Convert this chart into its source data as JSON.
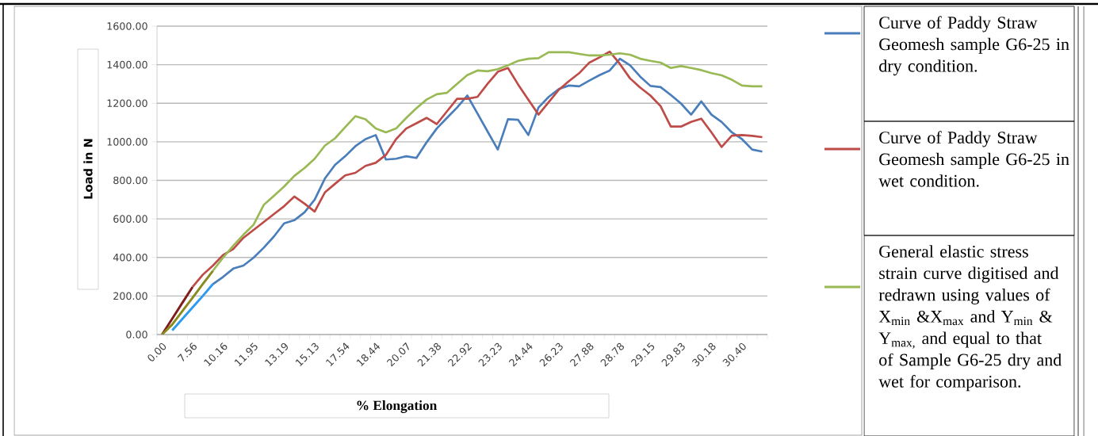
{
  "chart_data": {
    "type": "line",
    "xlabel": "% Elongation",
    "ylabel": "Load in N",
    "categories": [
      "0.00",
      null,
      null,
      "7.56",
      null,
      null,
      "10.16",
      null,
      null,
      "11.95",
      null,
      null,
      "13.19",
      null,
      null,
      "15.13",
      null,
      null,
      "17.54",
      null,
      null,
      "18.44",
      null,
      null,
      "20.07",
      null,
      null,
      "21.38",
      null,
      null,
      "22.92",
      null,
      null,
      "23.23",
      null,
      null,
      "24.44",
      null,
      null,
      "26.23",
      null,
      null,
      "27.88",
      null,
      null,
      "28.78",
      null,
      null,
      "29.15",
      null,
      null,
      "29.83",
      null,
      null,
      "30.18",
      null,
      null,
      "30.40",
      null,
      null
    ],
    "series": [
      {
        "name": "Curve of Paddy Straw Geomesh sample G6-25 in dry condition.",
        "color": "#4a7ebb",
        "values": [
          null,
          null,
          null,
          null,
          null,
          262,
          299,
          342,
          358,
          399,
          451,
          509,
          577,
          593,
          634,
          700,
          809,
          880,
          925,
          977,
          1014,
          1035,
          908,
          912,
          925,
          916,
          997,
          1069,
          1124,
          1178,
          1240,
          1147,
          1053,
          960,
          1117,
          1114,
          1035,
          1178,
          1233,
          1274,
          1292,
          1288,
          1318,
          1346,
          1370,
          1431,
          1397,
          1338,
          1290,
          1284,
          1243,
          1199,
          1141,
          1210,
          1141,
          1103,
          1049,
          1014,
          960,
          949
        ]
      },
      {
        "name": "Curve of Paddy Straw Geomesh sample G6-25 in wet condition.",
        "color": "#be4b48",
        "values": [
          null,
          null,
          null,
          247,
          310,
          358,
          413,
          444,
          502,
          543,
          584,
          625,
          666,
          716,
          679,
          638,
          737,
          782,
          826,
          839,
          875,
          891,
          932,
          1014,
          1069,
          1096,
          1124,
          1092,
          1158,
          1223,
          1223,
          1233,
          1301,
          1363,
          1383,
          1297,
          1219,
          1141,
          1206,
          1270,
          1315,
          1356,
          1411,
          1438,
          1468,
          1404,
          1329,
          1281,
          1240,
          1185,
          1079,
          1079,
          1103,
          1120,
          1049,
          973,
          1032,
          1035,
          1031,
          1024
        ]
      },
      {
        "name": "General elastic stress strain curve digitised and redrawn using values of X$_{min}$ &X$_{max}$ and Y$_{min}$ & Y$_{max,}$ and equal to that of Sample G6-25 dry and wet for comparison.",
        "color": "#98b954",
        "values": [
          null,
          null,
          null,
          null,
          null,
          331,
          399,
          461,
          518,
          570,
          673,
          720,
          768,
          823,
          864,
          912,
          980,
          1018,
          1076,
          1133,
          1117,
          1069,
          1049,
          1069,
          1124,
          1174,
          1219,
          1247,
          1254,
          1301,
          1346,
          1370,
          1366,
          1377,
          1397,
          1420,
          1431,
          1434,
          1465,
          1465,
          1465,
          1456,
          1448,
          1448,
          1452,
          1459,
          1452,
          1431,
          1420,
          1411,
          1383,
          1393,
          1383,
          1372,
          1356,
          1345,
          1322,
          1292,
          1288,
          1288
        ]
      },
      {
        "color": "#7f1d1d",
        "values": [
          0,
          82,
          165,
          247,
          null,
          null,
          null,
          null,
          null,
          null,
          null,
          null,
          null,
          null,
          null,
          null,
          null,
          null,
          null,
          null,
          null,
          null,
          null,
          null,
          null,
          null,
          null,
          null,
          null,
          null,
          null,
          null,
          null,
          null,
          null,
          null,
          null,
          null,
          null,
          null,
          null,
          null,
          null,
          null,
          null,
          null,
          null,
          null,
          null,
          null,
          null,
          null,
          null,
          null,
          null,
          null,
          null,
          null,
          null,
          null
        ]
      },
      {
        "color": "#8a8a1e",
        "values": [
          0,
          52,
          122,
          191,
          262,
          331,
          null,
          null,
          null,
          null,
          null,
          null,
          null,
          null,
          null,
          null,
          null,
          null,
          null,
          null,
          null,
          null,
          null,
          null,
          null,
          null,
          null,
          null,
          null,
          null,
          null,
          null,
          null,
          null,
          null,
          null,
          null,
          null,
          null,
          null,
          null,
          null,
          null,
          null,
          null,
          null,
          null,
          null,
          null,
          null,
          null,
          null,
          null,
          null,
          null,
          null,
          null,
          null,
          null,
          null
        ]
      },
      {
        "color": "#2d9bf0",
        "values": [
          null,
          22,
          81,
          141,
          200,
          262,
          null,
          null,
          null,
          null,
          null,
          null,
          null,
          null,
          null,
          null,
          null,
          null,
          null,
          null,
          null,
          null,
          null,
          null,
          null,
          null,
          null,
          null,
          null,
          null,
          null,
          null,
          null,
          null,
          null,
          null,
          null,
          null,
          null,
          null,
          null,
          null,
          null,
          null,
          null,
          null,
          null,
          null,
          null,
          null,
          null,
          null,
          null,
          null,
          null,
          null,
          null,
          null,
          null,
          null
        ]
      }
    ],
    "ylim": [
      0,
      1600
    ],
    "yticks": [
      {
        "value": 0,
        "label": "0.00"
      },
      {
        "value": 200,
        "label": "200.00"
      },
      {
        "value": 400,
        "label": "400.00"
      },
      {
        "value": 600,
        "label": "600.00"
      },
      {
        "value": 800,
        "label": "800.00"
      },
      {
        "value": 1000,
        "label": "1000.00"
      },
      {
        "value": 1200,
        "label": "1200.00"
      },
      {
        "value": 1400,
        "label": "1400.00"
      },
      {
        "value": 1600,
        "label": "1600.00"
      }
    ],
    "grid": "y",
    "legend": "right"
  }
}
